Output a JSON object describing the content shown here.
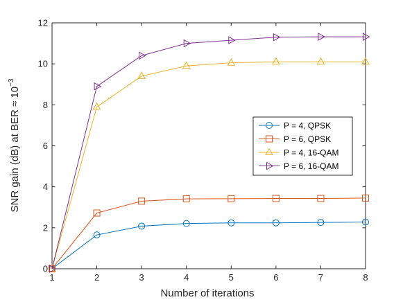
{
  "chart_data": {
    "type": "line",
    "title": "",
    "xlabel": "Number of iterations",
    "ylabel_main": "SNR gain (dB) at BER ≈ 10",
    "ylabel_exponent": "−3",
    "xlim": [
      1,
      8
    ],
    "ylim": [
      0,
      12
    ],
    "x": [
      1,
      2,
      3,
      4,
      5,
      6,
      7,
      8
    ],
    "xticks": [
      "1",
      "2",
      "3",
      "4",
      "5",
      "6",
      "7",
      "8"
    ],
    "yticks": [
      "0",
      "2",
      "4",
      "6",
      "8",
      "10",
      "12"
    ],
    "grid": false,
    "box": true,
    "legend_position": "right",
    "series": [
      {
        "name": "P = 4, QPSK",
        "marker": "circle",
        "color": "#0072BD",
        "values": [
          0,
          1.65,
          2.08,
          2.21,
          2.24,
          2.24,
          2.26,
          2.28
        ]
      },
      {
        "name": "P = 6, QPSK",
        "marker": "square",
        "color": "#D95319",
        "values": [
          0,
          2.72,
          3.3,
          3.41,
          3.42,
          3.43,
          3.43,
          3.45
        ]
      },
      {
        "name": "P = 4, 16-QAM",
        "marker": "triangle-up",
        "color": "#EDB120",
        "values": [
          0,
          7.9,
          9.4,
          9.9,
          10.05,
          10.1,
          10.1,
          10.1
        ]
      },
      {
        "name": "P = 6, 16-QAM",
        "marker": "triangle-right",
        "color": "#7E2F8E",
        "values": [
          0,
          8.9,
          10.4,
          11.0,
          11.15,
          11.3,
          11.32,
          11.32
        ]
      }
    ]
  }
}
